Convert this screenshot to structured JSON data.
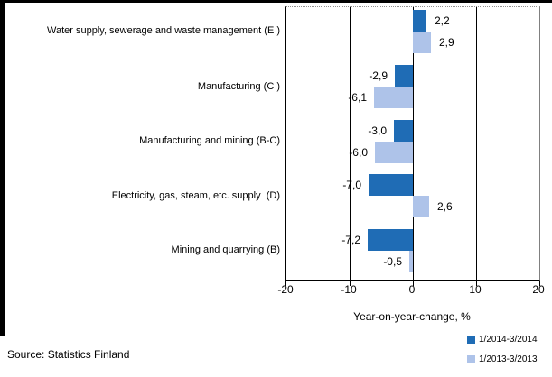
{
  "chart_data": {
    "type": "bar",
    "orientation": "horizontal",
    "title": "",
    "categories": [
      "Water supply, sewerage and waste management (E )",
      "Manufacturing (C )",
      "Manufacturing and mining (B-C)",
      "Electricity, gas, steam, etc. supply  (D)",
      "Mining and quarrying (B)"
    ],
    "series": [
      {
        "name": "1/2014-3/2014",
        "color": "#1f6cb5",
        "values": [
          2.2,
          -2.9,
          -3.0,
          -7.0,
          -7.2
        ],
        "value_labels": [
          "2,2",
          "-2,9",
          "-3,0",
          "-7,0",
          "-7,2"
        ]
      },
      {
        "name": "1/2013-3/2013",
        "color": "#aec3e9",
        "values": [
          2.9,
          -6.1,
          -6.0,
          2.6,
          -0.5
        ],
        "value_labels": [
          "2,9",
          "-6,1",
          "-6,0",
          "2,6",
          "-0,5"
        ]
      }
    ],
    "xlabel": "Year-on-year-change, %",
    "xlim": [
      -20,
      20
    ],
    "xticks": [
      -20,
      -10,
      0,
      10,
      20
    ],
    "xtick_labels": [
      "-20",
      "-10",
      "0",
      "10",
      "20"
    ],
    "grid": true,
    "legend_position": "bottom-right"
  },
  "source": "Source: Statistics Finland",
  "frame_color": "#000000"
}
